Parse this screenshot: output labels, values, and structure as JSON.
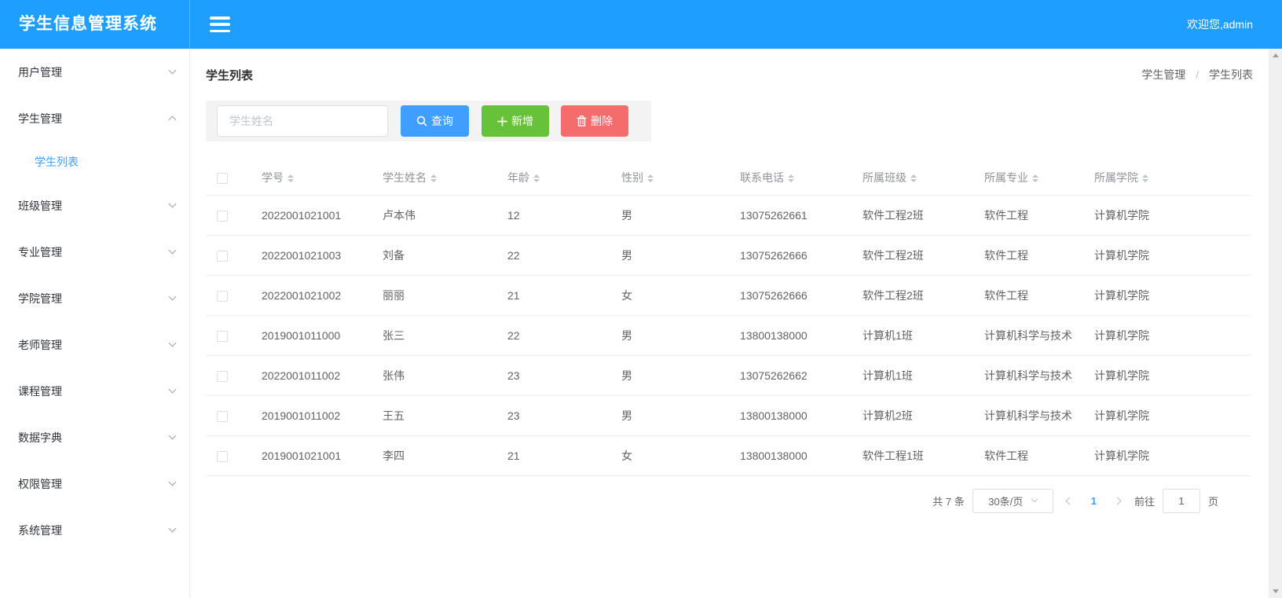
{
  "header": {
    "title": "学生信息管理系统",
    "welcome": "欢迎您,admin"
  },
  "sidebar": {
    "items": [
      {
        "key": "user-mgmt",
        "label": "用户管理",
        "state": "collapsed"
      },
      {
        "key": "student-mgmt",
        "label": "学生管理",
        "state": "expanded",
        "children": [
          {
            "key": "student-list",
            "label": "学生列表",
            "active": true
          }
        ]
      },
      {
        "key": "class-mgmt",
        "label": "班级管理",
        "state": "collapsed"
      },
      {
        "key": "major-mgmt",
        "label": "专业管理",
        "state": "collapsed"
      },
      {
        "key": "college-mgmt",
        "label": "学院管理",
        "state": "collapsed"
      },
      {
        "key": "teacher-mgmt",
        "label": "老师管理",
        "state": "collapsed"
      },
      {
        "key": "course-mgmt",
        "label": "课程管理",
        "state": "collapsed"
      },
      {
        "key": "data-dictionary",
        "label": "数据字典",
        "state": "collapsed"
      },
      {
        "key": "permission-mgmt",
        "label": "权限管理",
        "state": "collapsed"
      },
      {
        "key": "system-mgmt",
        "label": "系统管理",
        "state": "collapsed"
      }
    ]
  },
  "main": {
    "page_title": "学生列表",
    "breadcrumb": {
      "0": "学生管理",
      "separator": "/",
      "1": "学生列表"
    },
    "toolbar": {
      "search_placeholder": "学生姓名",
      "search_label": "查询",
      "add_label": "新增",
      "delete_label": "删除"
    },
    "table": {
      "columns": [
        "学号",
        "学生姓名",
        "年龄",
        "性别",
        "联系电话",
        "所属班级",
        "所属专业",
        "所属学院"
      ],
      "rows": [
        [
          "2022001021001",
          "卢本伟",
          "12",
          "男",
          "13075262661",
          "软件工程2班",
          "软件工程",
          "计算机学院"
        ],
        [
          "2022001021003",
          "刘备",
          "22",
          "男",
          "13075262666",
          "软件工程2班",
          "软件工程",
          "计算机学院"
        ],
        [
          "2022001021002",
          "丽丽",
          "21",
          "女",
          "13075262666",
          "软件工程2班",
          "软件工程",
          "计算机学院"
        ],
        [
          "2019001011000",
          "张三",
          "22",
          "男",
          "13800138000",
          "计算机1班",
          "计算机科学与技术",
          "计算机学院"
        ],
        [
          "2022001011002",
          "张伟",
          "23",
          "男",
          "13075262662",
          "计算机1班",
          "计算机科学与技术",
          "计算机学院"
        ],
        [
          "2019001011002",
          "王五",
          "23",
          "男",
          "13800138000",
          "计算机2班",
          "计算机科学与技术",
          "计算机学院"
        ],
        [
          "2019001021001",
          "李四",
          "21",
          "女",
          "13800138000",
          "软件工程1班",
          "软件工程",
          "计算机学院"
        ]
      ]
    },
    "pagination": {
      "total_text": "共 7 条",
      "page_size": "30条/页",
      "current_page": "1",
      "goto_label": "前往",
      "goto_value": "1",
      "page_unit": "页"
    }
  },
  "colors": {
    "header_bg": "#1e9fff",
    "primary": "#409eff",
    "success": "#67c23a",
    "danger": "#f56c6c",
    "active_menu": "#409eff"
  }
}
